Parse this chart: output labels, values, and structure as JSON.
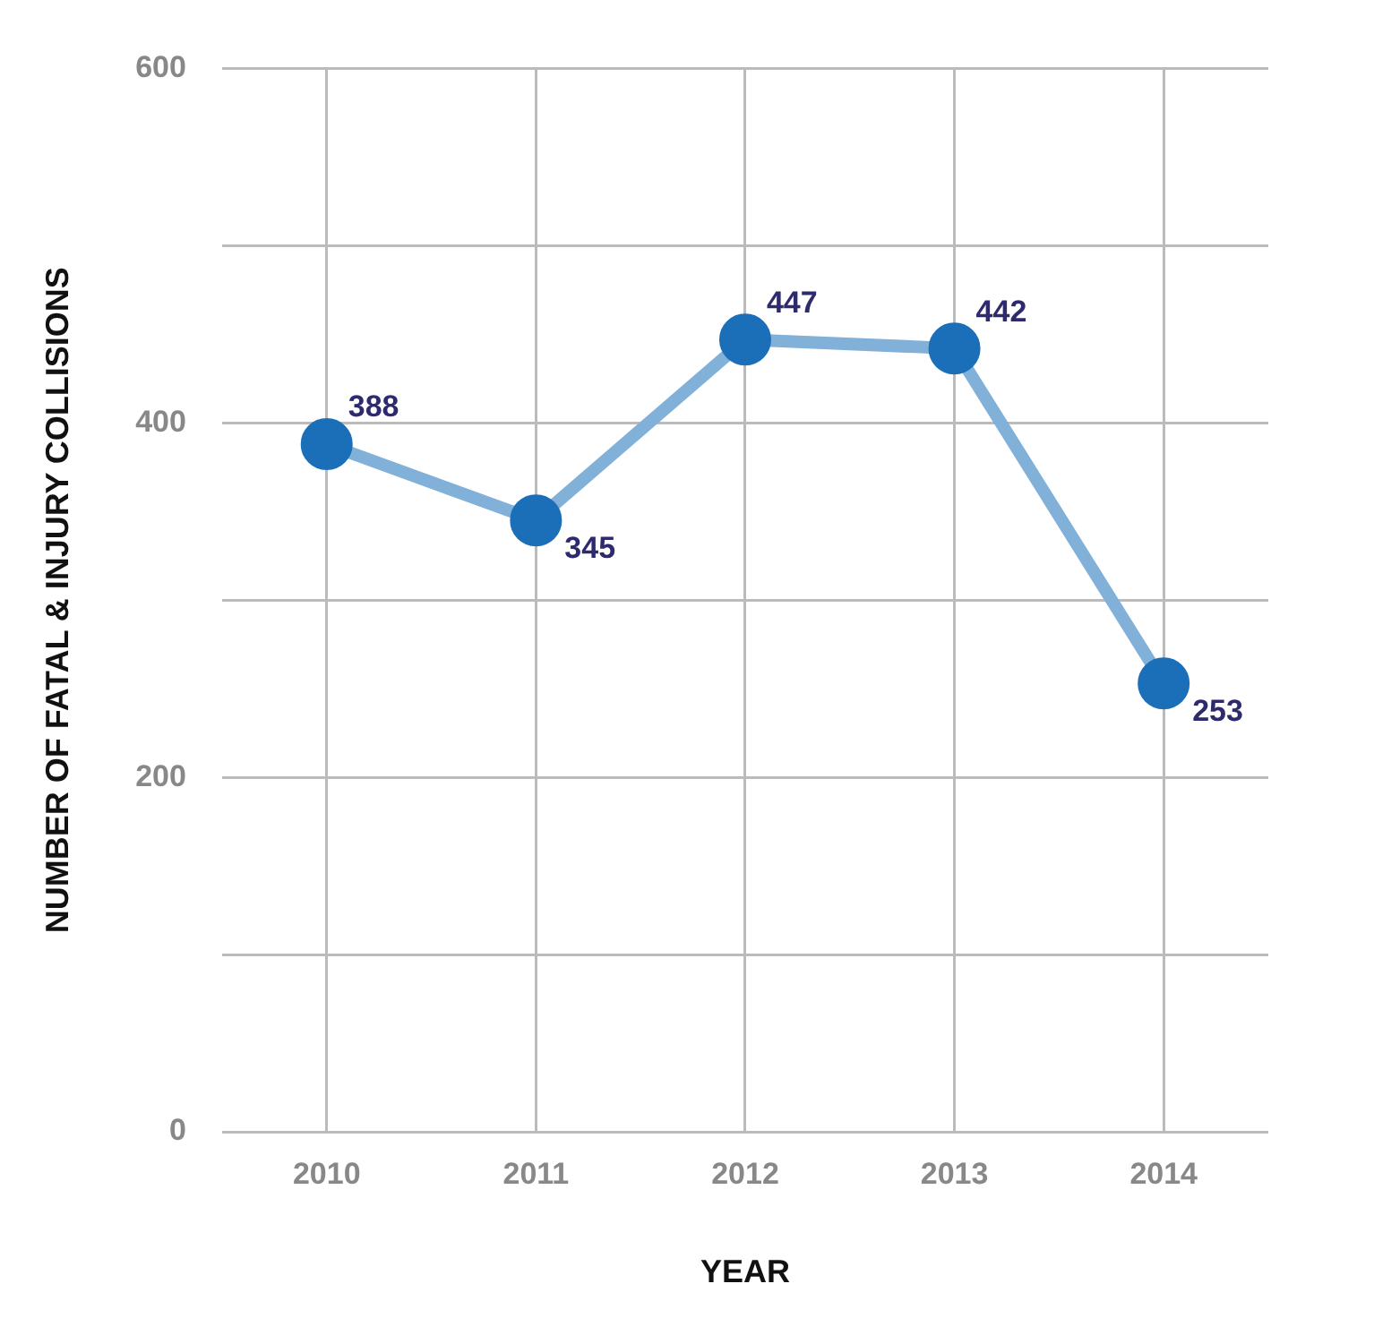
{
  "chart_data": {
    "type": "line",
    "xlabel": "YEAR",
    "ylabel": "NUMBER OF FATAL & INJURY COLLISIONS",
    "categories": [
      "2010",
      "2011",
      "2012",
      "2013",
      "2014"
    ],
    "series": [
      {
        "color": "#1a6fb8",
        "values": [
          388,
          345,
          447,
          442,
          253
        ]
      }
    ],
    "ylim": [
      0,
      600
    ],
    "yticks": [
      0,
      {
        "value": 100,
        "label": null
      },
      200,
      {
        "value": 300,
        "label": null
      },
      400,
      {
        "value": 500,
        "label": null
      },
      600
    ],
    "grid": true,
    "legend": false,
    "marker": "circle",
    "line_style": "solid",
    "data_labels": true
  }
}
